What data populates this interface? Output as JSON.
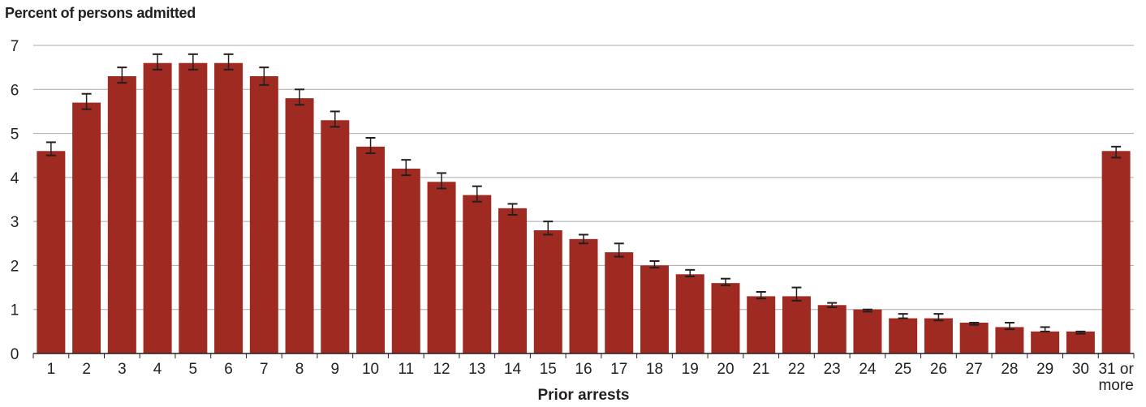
{
  "chart_data": {
    "type": "bar",
    "title": "Percent of persons admitted",
    "xlabel": "Prior arrests",
    "ylabel": "",
    "ylim": [
      0,
      7
    ],
    "yticks": [
      0,
      1,
      2,
      3,
      4,
      5,
      6,
      7
    ],
    "grid": true,
    "bar_color": "#9e2a22",
    "categories": [
      "1",
      "2",
      "3",
      "4",
      "5",
      "6",
      "7",
      "8",
      "9",
      "10",
      "11",
      "12",
      "13",
      "14",
      "15",
      "16",
      "17",
      "18",
      "19",
      "20",
      "21",
      "22",
      "23",
      "24",
      "25",
      "26",
      "27",
      "28",
      "29",
      "30",
      "31 or more"
    ],
    "values": [
      4.6,
      5.7,
      6.3,
      6.6,
      6.6,
      6.6,
      6.3,
      5.8,
      5.3,
      4.7,
      4.2,
      3.9,
      3.6,
      3.3,
      2.8,
      2.6,
      2.3,
      2.0,
      1.8,
      1.6,
      1.3,
      1.3,
      1.1,
      1.0,
      0.8,
      0.8,
      0.7,
      0.6,
      0.5,
      0.5,
      4.6
    ],
    "error_low": [
      4.5,
      5.55,
      6.15,
      6.45,
      6.45,
      6.45,
      6.1,
      5.65,
      5.15,
      4.55,
      4.05,
      3.75,
      3.45,
      3.15,
      2.7,
      2.5,
      2.2,
      1.95,
      1.75,
      1.55,
      1.25,
      1.2,
      1.05,
      0.95,
      0.8,
      0.75,
      0.65,
      0.55,
      0.5,
      0.45,
      4.45
    ],
    "error_high": [
      4.8,
      5.9,
      6.5,
      6.8,
      6.8,
      6.8,
      6.5,
      6.0,
      5.5,
      4.9,
      4.4,
      4.1,
      3.8,
      3.4,
      3.0,
      2.7,
      2.5,
      2.1,
      1.9,
      1.7,
      1.4,
      1.5,
      1.15,
      1.0,
      0.9,
      0.9,
      0.7,
      0.7,
      0.6,
      0.5,
      4.7
    ]
  }
}
